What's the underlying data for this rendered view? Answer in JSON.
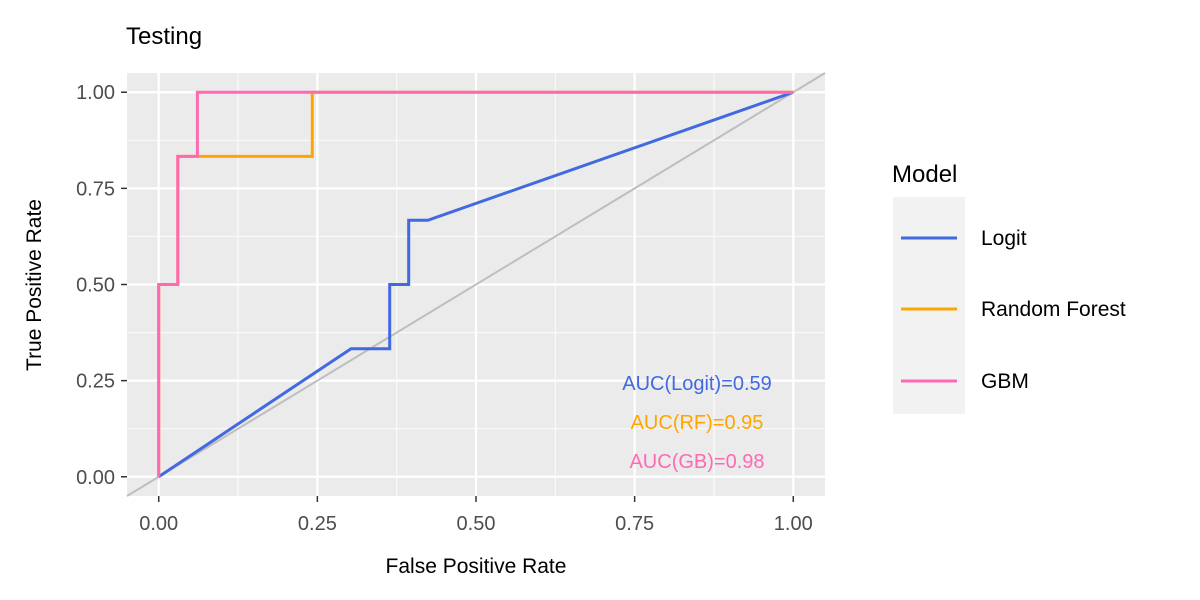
{
  "chart_data": {
    "type": "line",
    "title": "Testing",
    "xlabel": "False Positive Rate",
    "ylabel": "True Positive Rate",
    "xlim": [
      -0.05,
      1.05
    ],
    "ylim": [
      -0.05,
      1.05
    ],
    "x_ticks": [
      0,
      0.25,
      0.5,
      0.75,
      1
    ],
    "x_tick_labels": [
      "0.00",
      "0.25",
      "0.50",
      "0.75",
      "1.00"
    ],
    "y_ticks": [
      0,
      0.25,
      0.5,
      0.75,
      1
    ],
    "y_tick_labels": [
      "0.00",
      "0.25",
      "0.50",
      "0.75",
      "1.00"
    ],
    "grid": true,
    "diagonal_reference": true,
    "legend": {
      "title": "Model",
      "placement": "right"
    },
    "series": [
      {
        "name": "Logit",
        "color": "#4169E1",
        "x": [
          0,
          0.303,
          0.364,
          0.364,
          0.394,
          0.394,
          0.424,
          1.0
        ],
        "y": [
          0,
          0.333,
          0.333,
          0.5,
          0.5,
          0.667,
          0.667,
          1.0
        ]
      },
      {
        "name": "Random Forest",
        "color": "#FFA500",
        "x": [
          0,
          0,
          0.03,
          0.03,
          0.061,
          0.242,
          0.242,
          1.0
        ],
        "y": [
          0,
          0.5,
          0.5,
          0.833,
          0.833,
          0.833,
          1.0,
          1.0
        ]
      },
      {
        "name": "GBM",
        "color": "#FF69B4",
        "x": [
          0,
          0,
          0.03,
          0.03,
          0.061,
          0.061,
          1.0
        ],
        "y": [
          0,
          0.5,
          0.5,
          0.833,
          0.833,
          1.0,
          1.0
        ]
      }
    ],
    "annotations": [
      {
        "text": "AUC(Logit)=0.59",
        "color": "#4169E1"
      },
      {
        "text": "AUC(RF)=0.95",
        "color": "#FFA500"
      },
      {
        "text": "AUC(GB)=0.98",
        "color": "#FF69B4"
      }
    ]
  }
}
